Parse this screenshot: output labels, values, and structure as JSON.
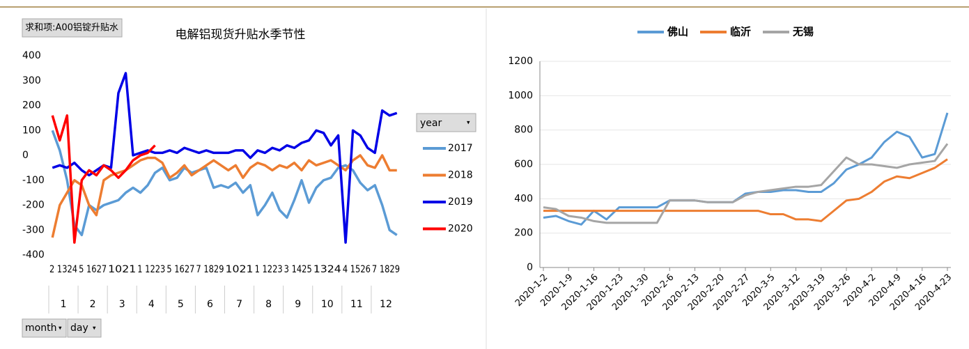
{
  "controls": {
    "filter": "求和项:A00铝锭升贴水",
    "legend_field": "year",
    "row_fields": [
      "month",
      "day"
    ]
  },
  "chart_data": [
    {
      "type": "line",
      "title": "电解铝现货升贴水季节性",
      "months": [
        "1",
        "2",
        "3",
        "4",
        "5",
        "6",
        "7",
        "8",
        "9",
        "10",
        "11",
        "12"
      ],
      "day_labels": [
        "2 1324",
        "5 1627",
        "1021",
        "1 1223",
        "5 1627",
        "7 1829",
        "1021",
        "1 1223",
        "3 1425",
        "1324",
        "4 1526",
        "7 1829"
      ],
      "ylim": [
        -400,
        400
      ],
      "yticks": [
        -400,
        -300,
        -200,
        -100,
        0,
        100,
        200,
        300,
        400
      ],
      "grid": false,
      "legend": "right",
      "series": [
        {
          "name": "2017",
          "color": "#5b9bd5",
          "values": [
            100,
            20,
            -100,
            -280,
            -320,
            -200,
            -220,
            -200,
            -190,
            -180,
            -150,
            -130,
            -150,
            -120,
            -70,
            -50,
            -100,
            -90,
            -50,
            -70,
            -60,
            -50,
            -130,
            -120,
            -130,
            -110,
            -150,
            -120,
            -240,
            -200,
            -150,
            -220,
            -250,
            -180,
            -100,
            -190,
            -130,
            -100,
            -90,
            -50,
            -40,
            -60,
            -110,
            -140,
            -120,
            -200,
            -300,
            -320
          ]
        },
        {
          "name": "2018",
          "color": "#ed7d31",
          "values": [
            -330,
            -200,
            -150,
            -100,
            -120,
            -200,
            -240,
            -100,
            -80,
            -70,
            -60,
            -40,
            -20,
            -10,
            -10,
            -30,
            -90,
            -70,
            -40,
            -80,
            -60,
            -40,
            -20,
            -40,
            -60,
            -40,
            -90,
            -50,
            -30,
            -40,
            -60,
            -40,
            -50,
            -30,
            -60,
            -20,
            -40,
            -30,
            -20,
            -40,
            -60,
            -20,
            0,
            -40,
            -50,
            0,
            -60,
            -60
          ]
        },
        {
          "name": "2019",
          "color": "#0000e6",
          "values": [
            -50,
            -40,
            -50,
            -30,
            -60,
            -80,
            -60,
            -40,
            -50,
            250,
            330,
            0,
            10,
            20,
            10,
            10,
            20,
            10,
            30,
            20,
            10,
            20,
            10,
            10,
            10,
            20,
            20,
            -10,
            20,
            10,
            30,
            20,
            40,
            30,
            50,
            60,
            100,
            90,
            40,
            80,
            -350,
            100,
            80,
            30,
            10,
            180,
            160,
            170
          ]
        },
        {
          "name": "2020",
          "color": "#ff0000",
          "values": [
            160,
            60,
            160,
            -350,
            -100,
            -60,
            -80,
            -40,
            -60,
            -90,
            -60,
            -20,
            0,
            10,
            40,
            null,
            null,
            null,
            null,
            null,
            null,
            null,
            null,
            null,
            null,
            null,
            null,
            null,
            null,
            null,
            null,
            null,
            null,
            null,
            null,
            null,
            null,
            null,
            null,
            null,
            null,
            null,
            null,
            null,
            null,
            null,
            null,
            null
          ]
        }
      ]
    },
    {
      "type": "line",
      "categories": [
        "2020-1-2",
        null,
        "2020-1-9",
        null,
        "2020-1-16",
        null,
        "2020-1-23",
        null,
        "2020-1-30",
        null,
        "2020-2-6",
        null,
        "2020-2-13",
        null,
        "2020-2-20",
        null,
        "2020-2-27",
        null,
        "2020-3-5",
        null,
        "2020-3-12",
        null,
        "2020-3-19",
        null,
        "2020-3-26",
        null,
        "2020-4-2",
        null,
        "2020-4-9",
        null,
        "2020-4-16",
        null,
        "2020-4-23"
      ],
      "ylim": [
        0,
        1200
      ],
      "yticks": [
        0,
        200,
        400,
        600,
        800,
        1000,
        1200
      ],
      "grid": true,
      "legend": "top",
      "series": [
        {
          "name": "佛山",
          "color": "#5b9bd5",
          "values": [
            290,
            300,
            270,
            250,
            330,
            280,
            350,
            350,
            350,
            350,
            390,
            390,
            390,
            380,
            380,
            380,
            430,
            440,
            440,
            450,
            450,
            440,
            440,
            490,
            570,
            600,
            640,
            730,
            790,
            760,
            640,
            660,
            900
          ]
        },
        {
          "name": "临沂",
          "color": "#ed7d31",
          "values": [
            330,
            330,
            330,
            330,
            330,
            330,
            330,
            330,
            330,
            330,
            330,
            330,
            330,
            330,
            330,
            330,
            330,
            330,
            310,
            310,
            280,
            280,
            270,
            330,
            390,
            400,
            440,
            500,
            530,
            520,
            550,
            580,
            630
          ]
        },
        {
          "name": "无锡",
          "color": "#a5a5a5",
          "values": [
            350,
            340,
            300,
            290,
            270,
            260,
            260,
            260,
            260,
            260,
            390,
            390,
            390,
            380,
            380,
            380,
            420,
            440,
            450,
            460,
            470,
            470,
            480,
            560,
            640,
            600,
            600,
            590,
            580,
            600,
            610,
            620,
            720
          ]
        }
      ]
    }
  ]
}
